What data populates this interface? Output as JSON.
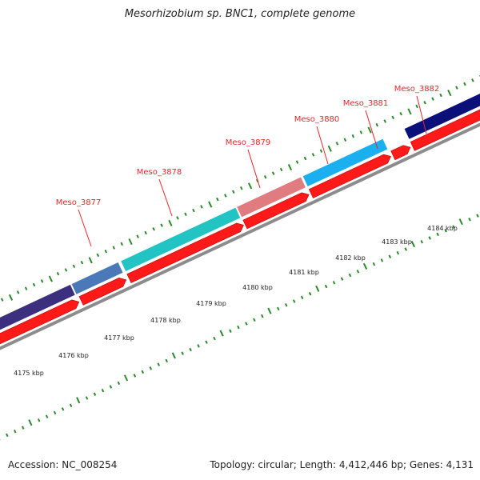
{
  "title": "Mesorhizobium sp. BNC1, complete genome",
  "accession": "Accession: NC_008254",
  "topology": "Topology: circular; Length: 4,412,446 bp; Genes: 4,131",
  "colors": {
    "forward_cds": "#ff1a1a",
    "backbone": "#8c8c8c",
    "tick": "#2a8a2a",
    "label": "#e8262d",
    "features": [
      "#3b2f7e",
      "#4a78b8",
      "#22c3c3",
      "#e07c80",
      "#1ab0f0",
      "#0b0f7a"
    ]
  },
  "gene_labels": [
    "Meso_3877",
    "Meso_3878",
    "Meso_3879",
    "Meso_3880",
    "Meso_3881",
    "Meso_3882"
  ],
  "scale_labels": [
    "4175 kbp",
    "4176 kbp",
    "4177 kbp",
    "4178 kbp",
    "4179 kbp",
    "4180 kbp",
    "4181 kbp",
    "4182 kbp",
    "4183 kbp",
    "4184 kbp"
  ]
}
